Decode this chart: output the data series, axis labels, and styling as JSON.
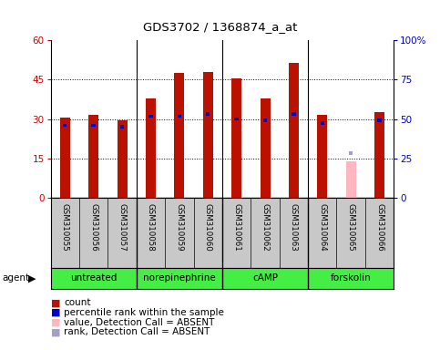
{
  "title": "GDS3702 / 1368874_a_at",
  "samples": [
    "GSM310055",
    "GSM310056",
    "GSM310057",
    "GSM310058",
    "GSM310059",
    "GSM310060",
    "GSM310061",
    "GSM310062",
    "GSM310063",
    "GSM310064",
    "GSM310065",
    "GSM310066"
  ],
  "count_values": [
    30.5,
    31.5,
    29.5,
    38.0,
    47.5,
    48.0,
    45.5,
    38.0,
    51.5,
    31.5,
    null,
    32.5
  ],
  "rank_values": [
    27.5,
    27.5,
    27.0,
    31.0,
    31.0,
    32.0,
    30.0,
    29.5,
    32.0,
    28.5,
    null,
    29.5
  ],
  "absent_count_value": 14.0,
  "absent_rank_value": 17.0,
  "absent_index": 10,
  "groups": [
    {
      "label": "untreated",
      "start": 0,
      "end": 2
    },
    {
      "label": "norepinephrine",
      "start": 3,
      "end": 5
    },
    {
      "label": "cAMP",
      "start": 6,
      "end": 8
    },
    {
      "label": "forskolin",
      "start": 9,
      "end": 11
    }
  ],
  "left_ylim": [
    0,
    60
  ],
  "right_ylim": [
    0,
    100
  ],
  "left_yticks": [
    0,
    15,
    30,
    45,
    60
  ],
  "right_yticks": [
    0,
    25,
    50,
    75,
    100
  ],
  "right_yticklabels": [
    "0",
    "25",
    "50",
    "75",
    "100%"
  ],
  "bar_color": "#bb1100",
  "rank_color": "#0000cc",
  "absent_count_color": "#ffb6c1",
  "absent_rank_color": "#a0a0c8",
  "plot_bg": "#ffffff",
  "xlabel_bg": "#c8c8c8",
  "agent_bg_light": "#b8f0b8",
  "agent_bg_dark": "#44ee44",
  "grid_color": "#000000",
  "bar_width": 0.35,
  "left_label_color": "#cc0000",
  "right_label_color": "#0000cc",
  "group_boundaries": [
    2.5,
    5.5,
    8.5
  ],
  "legend_items": [
    {
      "color": "#bb1100",
      "label": "count"
    },
    {
      "color": "#0000cc",
      "label": "percentile rank within the sample"
    },
    {
      "color": "#ffb6c1",
      "label": "value, Detection Call = ABSENT"
    },
    {
      "color": "#a0a0c8",
      "label": "rank, Detection Call = ABSENT"
    }
  ]
}
